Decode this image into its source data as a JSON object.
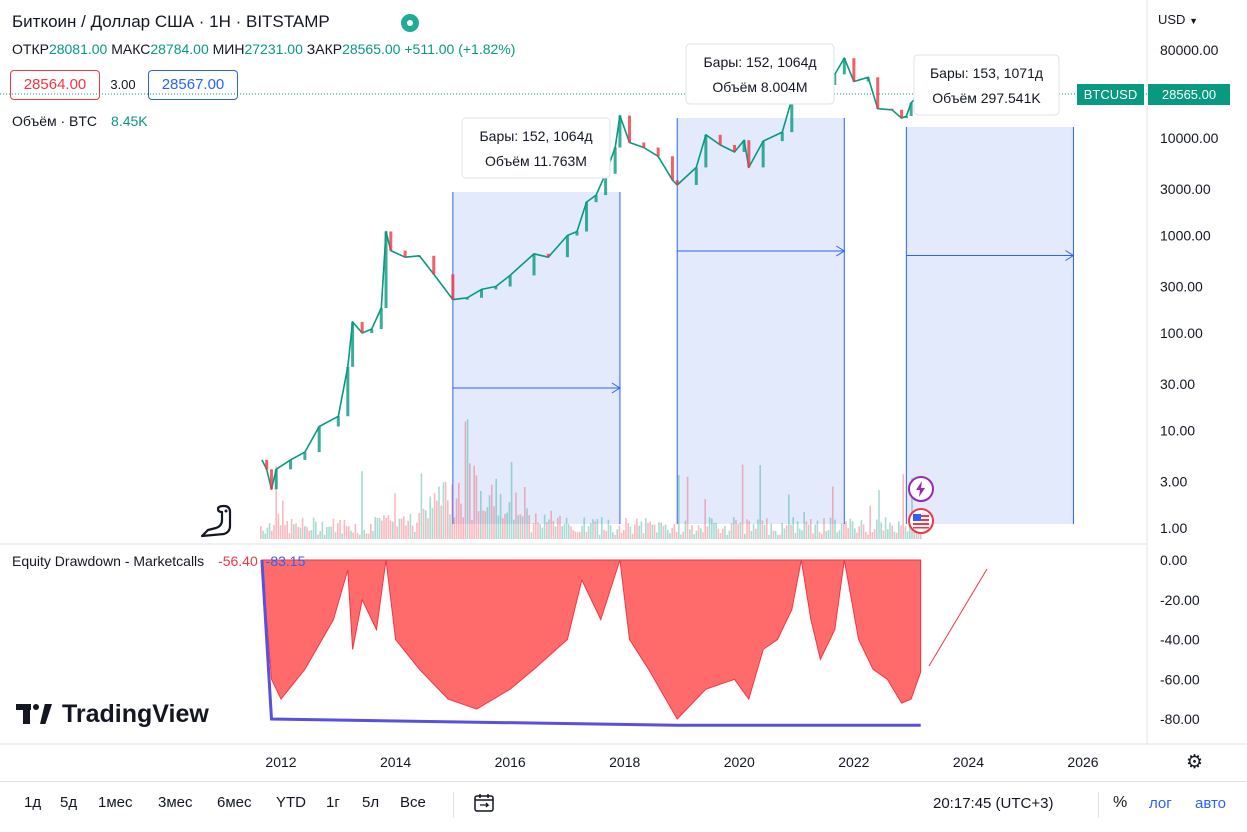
{
  "header": {
    "title": "Биткоин / Доллар США · 1Н · BITSTAMP",
    "ohlc": {
      "open_label": "ОТКР",
      "open": "28081.00",
      "high_label": "МАКС",
      "high": "28784.00",
      "low_label": "МИН",
      "low": "27231.00",
      "close_label": "ЗАКР",
      "close": "28565.00",
      "change": "+511.00 (+1.82%)"
    },
    "bid": "28564.00",
    "spread": "3.00",
    "ask": "28567.00",
    "volume_label": "Объём · BTC",
    "volume_value": "8.45K",
    "currency": "USD",
    "ticker": "BTCUSD",
    "last_price": "28565.00",
    "equity_label": "Equity Drawdown - Marketcalls",
    "equity_value_1": "-56.40",
    "equity_value_2": "-83.15"
  },
  "colors": {
    "up": "#089981",
    "down": "#f23645",
    "accent": "#2962ff",
    "range_fill": "#dde6fb",
    "drawdown_fill": "#ff6b6b",
    "max_drawdown_line": "#5b4fe0"
  },
  "chart_data": [
    {
      "type": "line",
      "scale": "log",
      "series": [
        {
          "name": "BTCUSD",
          "x": [
            "2011-09",
            "2011-10",
            "2011-11",
            "2011-12",
            "2012-03",
            "2012-06",
            "2012-09",
            "2013-01",
            "2013-03",
            "2013-04",
            "2013-06",
            "2013-08",
            "2013-10",
            "2013-11",
            "2013-12",
            "2014-03",
            "2014-06",
            "2014-09",
            "2015-01",
            "2015-04",
            "2015-07",
            "2015-10",
            "2016-01",
            "2016-06",
            "2016-09",
            "2017-01",
            "2017-03",
            "2017-05",
            "2017-07",
            "2017-09",
            "2017-11",
            "2017-12",
            "2018-02",
            "2018-05",
            "2018-08",
            "2018-11",
            "2018-12",
            "2019-04",
            "2019-06",
            "2019-09",
            "2019-12",
            "2020-02",
            "2020-03",
            "2020-06",
            "2020-10",
            "2020-12",
            "2021-02",
            "2021-04",
            "2021-06",
            "2021-09",
            "2021-11",
            "2022-01",
            "2022-04",
            "2022-06",
            "2022-09",
            "2022-11",
            "2022-12",
            "2023-01",
            "2023-03"
          ],
          "values": [
            5,
            4,
            2.5,
            4,
            5,
            6,
            11,
            14,
            45,
            130,
            100,
            110,
            180,
            1100,
            700,
            600,
            620,
            400,
            220,
            230,
            280,
            300,
            390,
            650,
            600,
            1000,
            1100,
            2200,
            2600,
            4300,
            8000,
            17000,
            9000,
            8000,
            6500,
            3700,
            3300,
            5000,
            10800,
            8500,
            7200,
            9500,
            5000,
            9300,
            11500,
            25000,
            50000,
            62000,
            35000,
            45000,
            66000,
            38000,
            42000,
            20000,
            19500,
            16000,
            16800,
            23000,
            28565
          ]
        }
      ],
      "ylim": [
        1,
        80000
      ],
      "y_ticks": [
        "80000.00",
        "10000.00",
        "3000.00",
        "1000.00",
        "300.00",
        "100.00",
        "30.00",
        "10.00",
        "3.00",
        "1.00"
      ],
      "x_ticks": [
        "2012",
        "2014",
        "2016",
        "2018",
        "2020",
        "2022",
        "2024",
        "2026"
      ]
    },
    {
      "type": "area",
      "series": [
        {
          "name": "Equity Drawdown - Marketcalls",
          "x": [
            "2011-09",
            "2011-11",
            "2012-01",
            "2012-06",
            "2012-12",
            "2013-03",
            "2013-04",
            "2013-06",
            "2013-09",
            "2013-11",
            "2014-01",
            "2014-06",
            "2014-12",
            "2015-06",
            "2016-01",
            "2016-06",
            "2017-01",
            "2017-04",
            "2017-08",
            "2017-12",
            "2018-02",
            "2018-06",
            "2018-12",
            "2019-06",
            "2019-12",
            "2020-03",
            "2020-06",
            "2020-09",
            "2020-12",
            "2021-02",
            "2021-04",
            "2021-06",
            "2021-09",
            "2021-11",
            "2022-02",
            "2022-05",
            "2022-08",
            "2022-11",
            "2023-01",
            "2023-03"
          ],
          "values": [
            0,
            -60,
            -70,
            -55,
            -30,
            -5,
            -45,
            -20,
            -35,
            0,
            -40,
            -55,
            -70,
            -75,
            -65,
            -55,
            -40,
            -10,
            -30,
            0,
            -40,
            -55,
            -80,
            -65,
            -60,
            -70,
            -45,
            -40,
            -25,
            0,
            -30,
            -50,
            -35,
            0,
            -40,
            -55,
            -60,
            -72,
            -70,
            -56.4
          ]
        },
        {
          "name": "max-drawdown",
          "x": [
            "2011-09",
            "2011-11",
            "2018-12",
            "2023-03"
          ],
          "values": [
            0,
            -80,
            -83.15,
            -83.15
          ]
        }
      ],
      "ylim": [
        -90,
        0
      ],
      "y_ticks": [
        "0.00",
        "-20.00",
        "-40.00",
        "-60.00",
        "-80.00"
      ]
    }
  ],
  "annotations": [
    {
      "bars": "Бары: 152, 1064д",
      "volume": "Объём 11.763M"
    },
    {
      "bars": "Бары: 152, 1064д",
      "volume": "Объём 8.004M"
    },
    {
      "bars": "Бары: 153, 1071д",
      "volume": "Объём 297.541K"
    }
  ],
  "timeframes": [
    "1д",
    "5д",
    "1мес",
    "3мес",
    "6мес",
    "YTD",
    "1г",
    "5л",
    "Все"
  ],
  "footer": {
    "clock": "20:17:45 (UTC+3)",
    "percent": "%",
    "log": "лог",
    "auto": "авто"
  },
  "branding": {
    "logo_text": "TradingView"
  }
}
